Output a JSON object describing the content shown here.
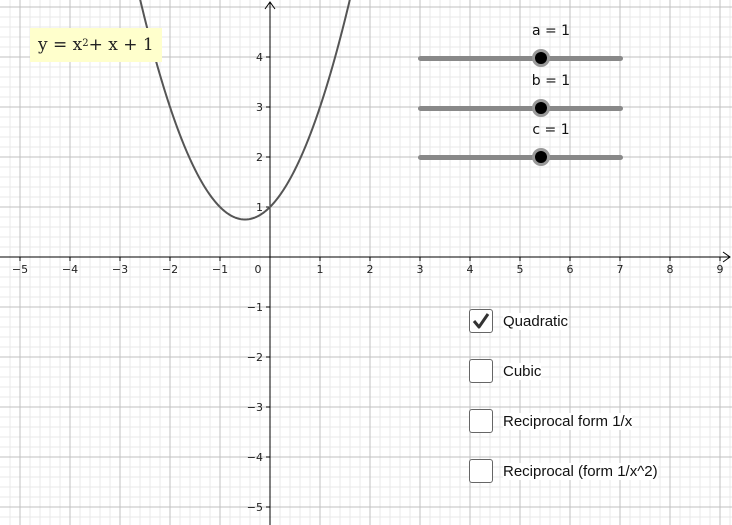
{
  "equation": {
    "prefix": "y = x",
    "exponent": "2",
    "suffix": " + x + 1"
  },
  "plot": {
    "x_ticks": [
      "−5",
      "−4",
      "−3",
      "−2",
      "−1",
      "0",
      "1",
      "2",
      "3",
      "4",
      "5",
      "6",
      "7",
      "8",
      "9"
    ],
    "y_ticks": [
      "4",
      "3",
      "2",
      "1",
      "−1",
      "−2",
      "−3",
      "−4",
      "−5"
    ],
    "x_range": [
      -5.3,
      9.3
    ],
    "y_range": [
      -5.3,
      5.1
    ],
    "grid": true,
    "colors": {
      "curve": "#555555",
      "major_grid": "#c0c0c0",
      "minor_grid": "#e8e8e8",
      "axes": "#000000"
    }
  },
  "curve": {
    "a": 1,
    "b": 1,
    "c": 1
  },
  "sliders": [
    {
      "label": "a = 1",
      "value": 1,
      "min": -5,
      "max": 5,
      "position": 0.6
    },
    {
      "label": "b = 1",
      "value": 1,
      "min": -5,
      "max": 5,
      "position": 0.6
    },
    {
      "label": "c = 1",
      "value": 1,
      "min": -5,
      "max": 5,
      "position": 0.6
    }
  ],
  "checkboxes": [
    {
      "label": "Quadratic",
      "checked": true
    },
    {
      "label": "Cubic",
      "checked": false
    },
    {
      "label": "Reciprocal form 1/x",
      "checked": false
    },
    {
      "label": "Reciprocal (form 1/x^2)",
      "checked": false
    }
  ]
}
